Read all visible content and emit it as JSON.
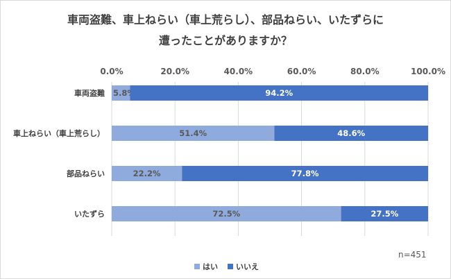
{
  "chart_data": {
    "type": "bar",
    "orientation": "horizontal",
    "stacked": true,
    "title": [
      "車両盗難、車上ねらい（車上荒らし）、部品ねらい、いたずらに",
      "遭ったことがありますか？"
    ],
    "categories": [
      "車両盗難",
      "車上ねらい（車上荒らし）",
      "部品ねらい",
      "いたずら"
    ],
    "series": [
      {
        "name": "はい",
        "values": [
          5.8,
          51.4,
          22.2,
          72.5
        ],
        "color": "#8faadc",
        "label_color": "#595959"
      },
      {
        "name": "いいえ",
        "values": [
          94.2,
          48.6,
          77.8,
          27.5
        ],
        "color": "#4472c4",
        "label_color": "#ffffff"
      }
    ],
    "xlim": [
      0,
      100
    ],
    "ticks": [
      0,
      20,
      40,
      60,
      80,
      100
    ],
    "tick_labels": [
      "0.0%",
      "20.0%",
      "40.0%",
      "60.0%",
      "80.0%",
      "100.0%"
    ],
    "data_labels": [
      [
        "5.8%",
        "51.4%",
        "22.2%",
        "72.5%"
      ],
      [
        "94.2%",
        "48.6%",
        "77.8%",
        "27.5%"
      ]
    ],
    "gridlines": true,
    "legend_position": "bottom",
    "note": "n=451"
  }
}
